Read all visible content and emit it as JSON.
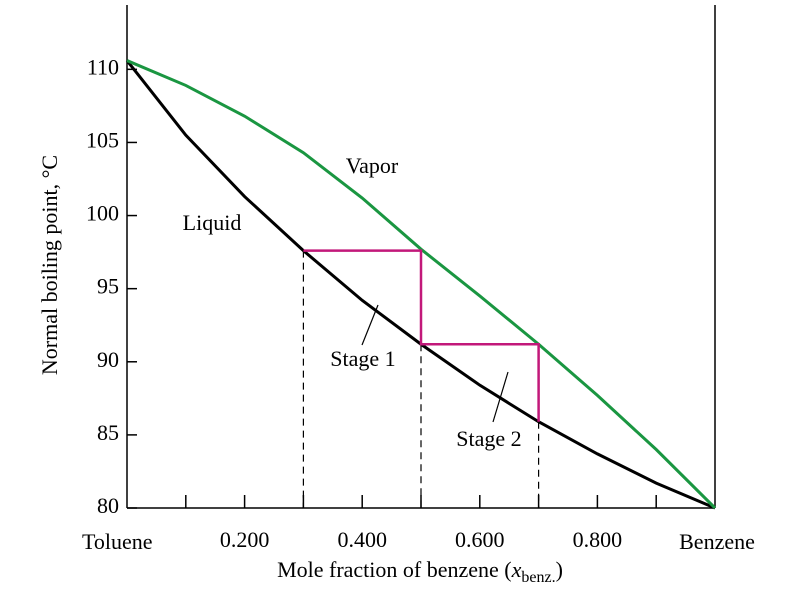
{
  "chart_data": {
    "type": "line",
    "ylabel": "Normal boiling point, °C",
    "xlabel": {
      "text": "Mole fraction of benzene (",
      "var": "x",
      "sub": "benz.",
      "close": ")"
    },
    "xlim": [
      0,
      1
    ],
    "ylim": [
      80,
      114.4
    ],
    "xticks": [
      {
        "value": 0.2,
        "label": "0.200"
      },
      {
        "value": 0.4,
        "label": "0.400"
      },
      {
        "value": 0.6,
        "label": "0.600"
      },
      {
        "value": 0.8,
        "label": "0.800"
      }
    ],
    "xminorticks": [
      0.1,
      0.3,
      0.5,
      0.7,
      0.9
    ],
    "yticks": [
      80,
      85,
      90,
      95,
      100,
      105,
      110
    ],
    "x": [
      0,
      0.1,
      0.2,
      0.3,
      0.4,
      0.5,
      0.6,
      0.7,
      0.8,
      0.9,
      1
    ],
    "series": [
      {
        "name": "Liquid",
        "color": "#000000",
        "values": [
          110.6,
          105.5,
          101.3,
          97.6,
          94.2,
          91.2,
          88.4,
          85.9,
          83.7,
          81.7,
          80
        ]
      },
      {
        "name": "Vapor",
        "color": "#1a9641",
        "values": [
          110.6,
          108.9,
          106.8,
          104.3,
          101.2,
          97.7,
          94.5,
          91.2,
          87.7,
          84,
          80
        ]
      }
    ],
    "steps": {
      "color": "#c2187a",
      "x": [
        0.3,
        0.5,
        0.5,
        0.7,
        0.7
      ],
      "y": [
        97.6,
        97.6,
        91.2,
        91.2,
        85.9
      ],
      "labels": [
        "Stage 1",
        "Stage 2"
      ]
    },
    "end_labels": [
      "Toluene",
      "Benzene"
    ]
  }
}
